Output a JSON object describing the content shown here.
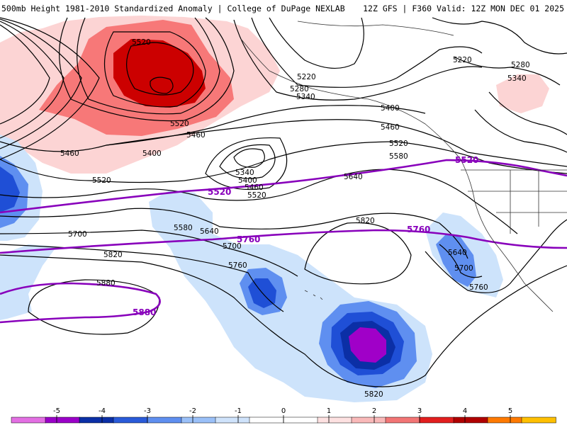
{
  "header": {
    "title": "500mb Height 1981-2010 Standardized Anomaly | College of DuPage NEXLAB",
    "valid": "12Z GFS | F360 Valid: 12Z MON DEC 01 2025"
  },
  "contour_labels": {
    "l5520_a": "5520",
    "l5520_b": "5520",
    "l5520_c": "5520",
    "l5220_a": "5220",
    "l5220_b": "5220",
    "l5280_a": "5280",
    "l5280_b": "5280",
    "l5340_a": "5340",
    "l5340_b": "5340",
    "l5340_c": "5340",
    "l5400_a": "5400",
    "l5400_b": "5400",
    "l5400_c": "5400",
    "l5460_a": "5460",
    "l5460_b": "5460",
    "l5460_c": "5460",
    "l5460_d": "5460",
    "l5520_d": "5520",
    "l5520_e": "5520",
    "l5580_a": "5580",
    "l5580_b": "5580",
    "l5640_a": "5640",
    "l5640_b": "5640",
    "l5700_a": "5700",
    "l5700_b": "5700",
    "l5700_c": "5700",
    "l5760_a": "5760",
    "l5760_b": "5760",
    "l5820_a": "5820",
    "l5820_b": "5820",
    "l5820_c": "5820",
    "l5880_a": "5880"
  },
  "highlight_labels": {
    "p5520_a": "5520",
    "p5520_b": "5520",
    "p5760_a": "5760",
    "p5760_b": "5760",
    "p5880_a": "5880"
  },
  "colorbar": {
    "ticks": [
      "-5",
      "-4",
      "-3",
      "-2",
      "-1",
      "0",
      "1",
      "2",
      "3",
      "4",
      "5"
    ],
    "colors": [
      "#e36fe3",
      "#9a00c8",
      "#0b2fa6",
      "#2a5bd9",
      "#5f8ff0",
      "#9ac0f8",
      "#cfe3fb",
      "#ffffff",
      "#ffffff",
      "#fde1e1",
      "#f9b9b9",
      "#f27575",
      "#e21e1e",
      "#b00000",
      "#ff7a00",
      "#ffc000"
    ]
  },
  "colors": {
    "pos1": "#fcd4d4",
    "pos2": "#f77878",
    "pos3": "#cc0000",
    "neg1": "#cde3fb",
    "neg2": "#5f8ff0",
    "neg3": "#1f4fd6",
    "neg4": "#0b2fa6",
    "neg5": "#a000c8",
    "highlight": "#8800bb"
  }
}
